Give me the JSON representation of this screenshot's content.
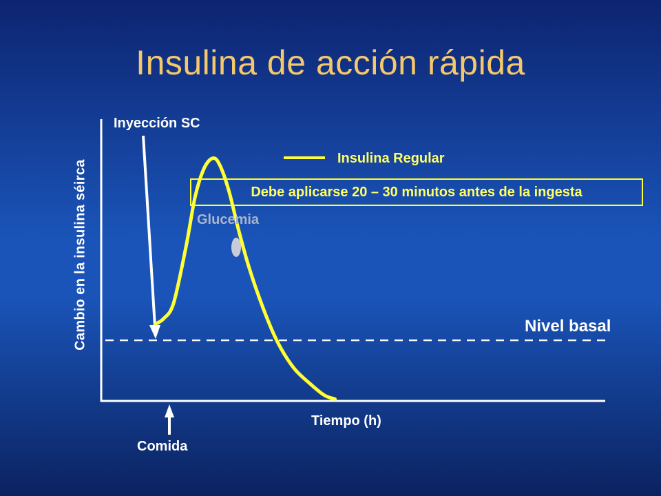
{
  "title": "Insulina de acción rápida",
  "colors": {
    "title": "#f5c86a",
    "curve": "#ffff33",
    "axes": "#ffffff",
    "baseline": "#ffffff",
    "background_top": "#0d2470",
    "background_mid": "#1a54b8"
  },
  "chart_data": {
    "type": "line",
    "title": "Insulina de acción rápida",
    "xlabel": "Tiempo (h)",
    "ylabel": "Cambio en la insulina séirca",
    "xlim": [
      0,
      10
    ],
    "ylim": [
      0,
      10
    ],
    "grid": false,
    "legend_position": "top-center",
    "baseline": {
      "label": "Nivel basal",
      "y": 3
    },
    "series": [
      {
        "name": "Insulina Regular",
        "x": [
          0.0,
          0.22,
          0.5,
          0.85,
          1.1,
          1.35,
          1.6,
          1.8,
          2.05,
          2.3,
          2.6,
          3.0,
          3.4,
          3.85,
          4.3,
          4.7,
          5.0
        ],
        "y": [
          3.0,
          3.2,
          3.8,
          6.0,
          7.9,
          9.0,
          9.4,
          9.1,
          8.1,
          6.7,
          5.2,
          3.6,
          2.3,
          1.3,
          0.7,
          0.25,
          0.1
        ]
      }
    ],
    "annotations": [
      {
        "text": "Inyección SC"
      },
      {
        "text": "Debe aplicarse 20 – 30 minutos antes de la ingesta"
      },
      {
        "text": "Glucemia"
      },
      {
        "text": "Comida"
      }
    ]
  }
}
